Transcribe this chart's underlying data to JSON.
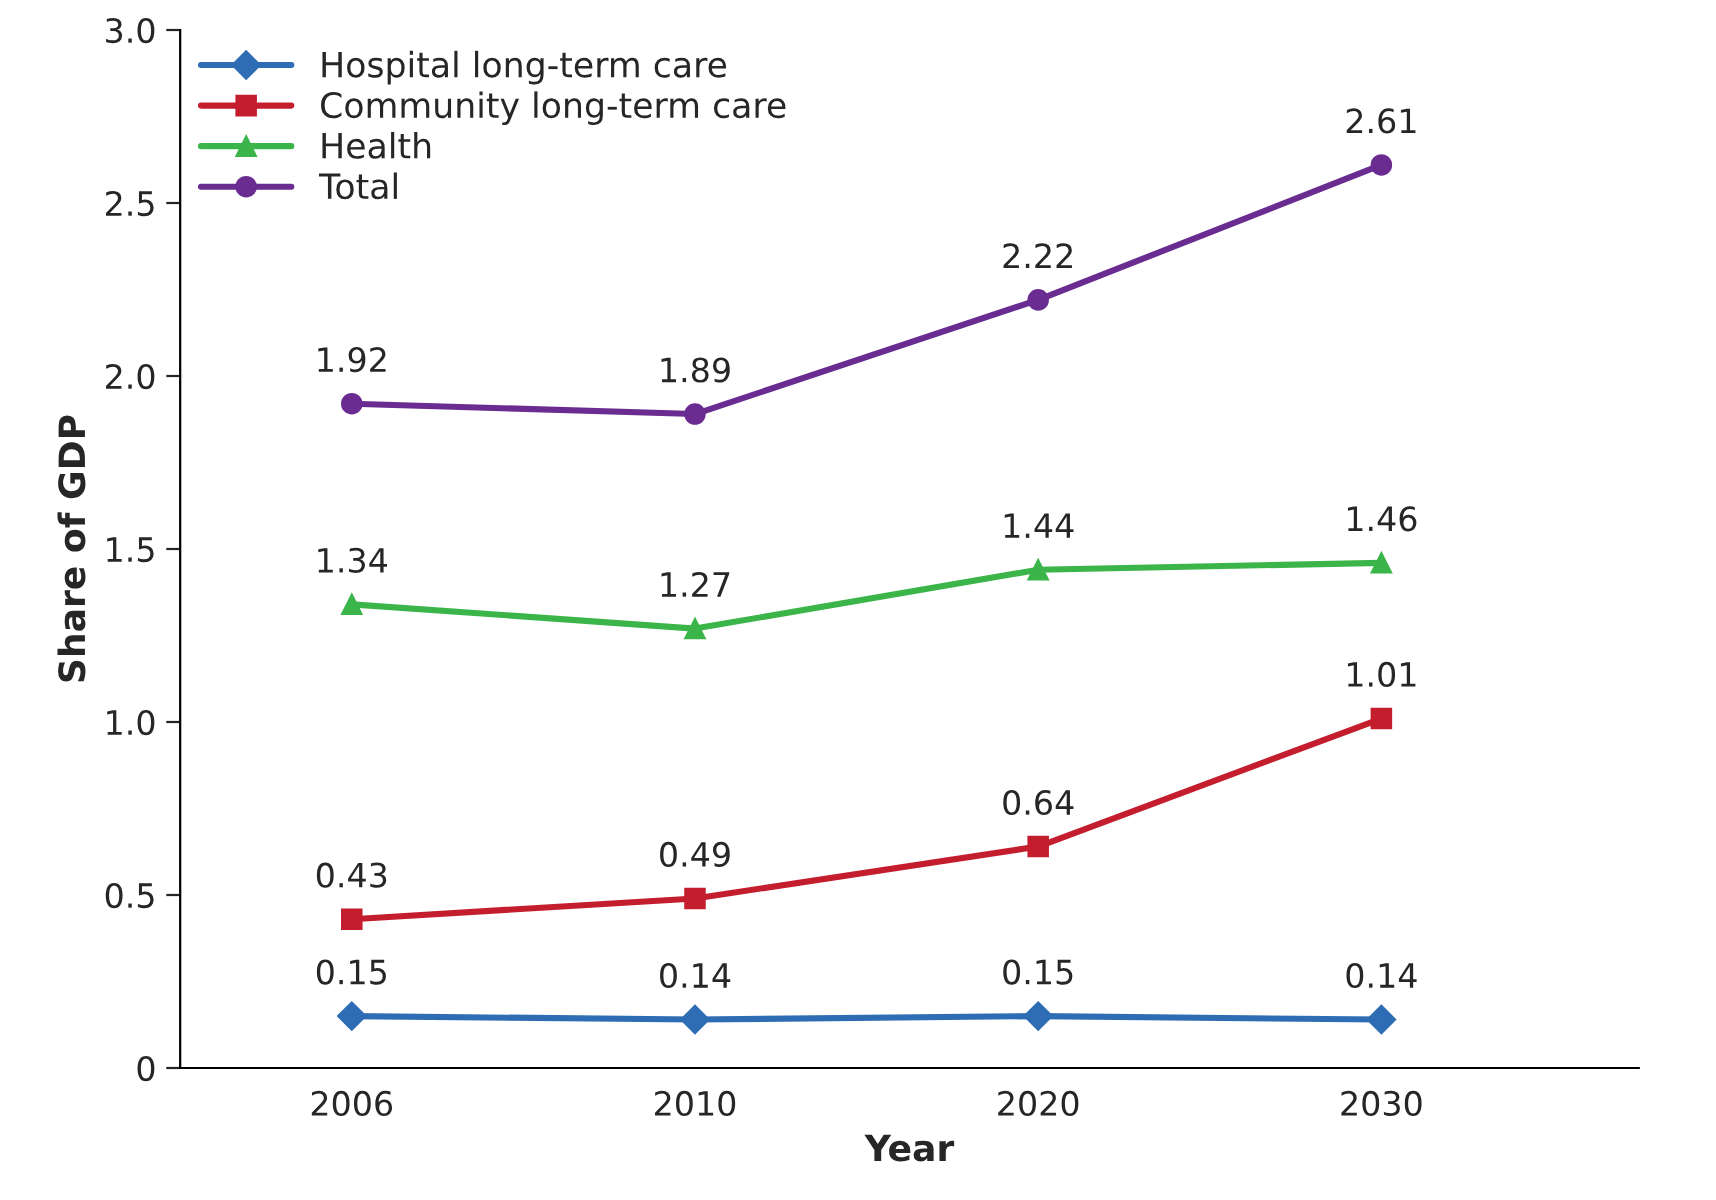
{
  "chart_data": {
    "type": "line",
    "xlabel": "Year",
    "ylabel": "Share of GDP",
    "categories": [
      "2006",
      "2010",
      "2020",
      "2030"
    ],
    "series": [
      {
        "name": "Hospital long-term care",
        "color": "#2e6db4",
        "marker": "diamond",
        "values": [
          0.15,
          0.14,
          0.15,
          0.14
        ]
      },
      {
        "name": "Community long-term care",
        "color": "#c41e2e",
        "marker": "square",
        "values": [
          0.43,
          0.49,
          0.64,
          1.01
        ]
      },
      {
        "name": "Health",
        "color": "#3bb54a",
        "marker": "triangle",
        "values": [
          1.34,
          1.27,
          1.44,
          1.46
        ]
      },
      {
        "name": "Total",
        "color": "#6a2c91",
        "marker": "circle",
        "values": [
          1.92,
          1.89,
          2.22,
          2.61
        ]
      }
    ],
    "ylim": [
      0,
      3.0
    ],
    "yticks": [
      0,
      0.5,
      {
        "value": 1,
        "label": "1.0"
      },
      1.5,
      {
        "value": 2,
        "label": "2.0"
      },
      2.5,
      {
        "value": 3,
        "label": "3.0"
      }
    ],
    "data_labels": true,
    "grid": false,
    "legend": "top left",
    "line_style": "solid"
  }
}
